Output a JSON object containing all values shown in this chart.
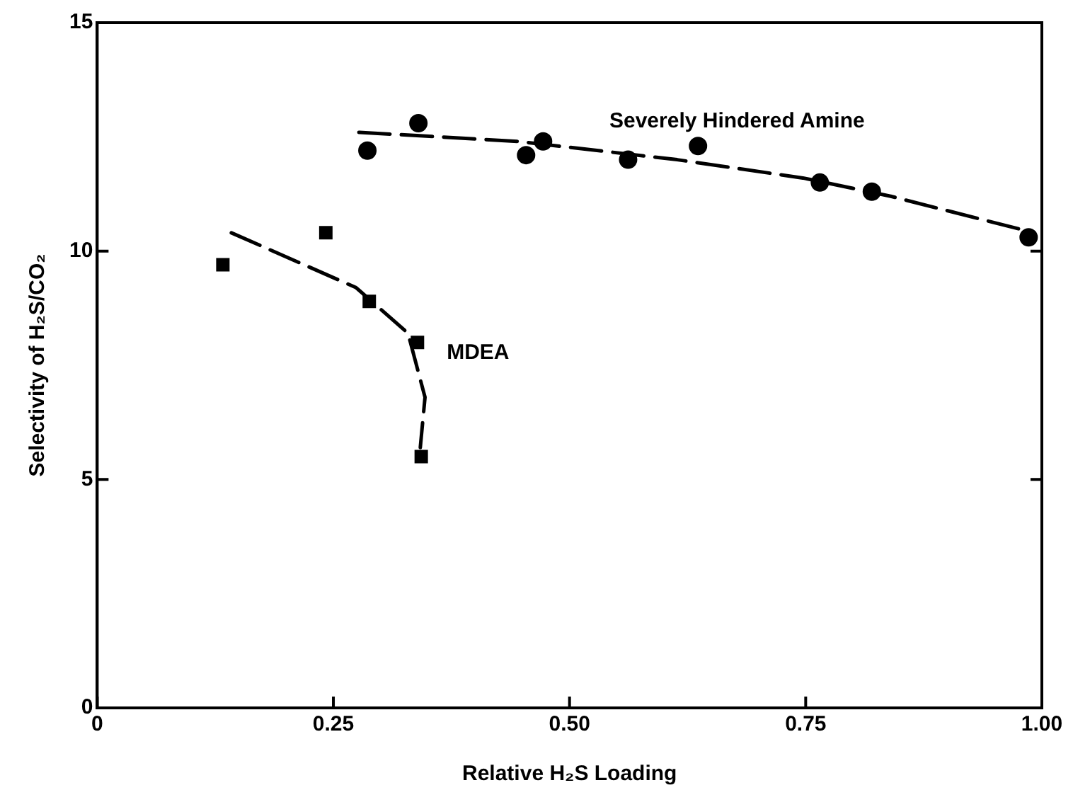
{
  "chart_data": {
    "type": "scatter",
    "xlabel": "Relative H₂S Loading",
    "ylabel": "Selectivity of H₂S/CO₂",
    "xlim": [
      0,
      1
    ],
    "ylim": [
      0,
      15
    ],
    "xticks": [
      0,
      {
        "value": 0.25,
        "label": "0.25"
      },
      {
        "value": 0.5,
        "label": "0.50"
      },
      {
        "value": 0.75,
        "label": "0.75"
      },
      {
        "value": 1,
        "label": "1.00"
      }
    ],
    "yticks": [
      0,
      5,
      10,
      15
    ],
    "grid": false,
    "legend": false,
    "series": [
      {
        "name": "Severely Hindered Amine",
        "type": "scatter",
        "marker": "circle",
        "color": "#000000",
        "x": [
          0.286,
          0.34,
          0.454,
          0.472,
          0.562,
          0.636,
          0.765,
          0.82,
          0.986
        ],
        "values": [
          12.2,
          12.8,
          12.1,
          12.4,
          12.0,
          12.3,
          11.5,
          11.3,
          10.3
        ]
      },
      {
        "name": "MDEA",
        "type": "scatter",
        "marker": "square",
        "color": "#000000",
        "x": [
          0.133,
          0.242,
          0.288,
          0.339,
          0.343
        ],
        "values": [
          9.7,
          10.4,
          8.9,
          8.0,
          5.5
        ]
      },
      {
        "type": "line",
        "marker": "none",
        "line_style": "dashed",
        "color": "#000000",
        "x": [
          0.277,
          0.446,
          0.614,
          0.747,
          0.84,
          0.992
        ],
        "values": [
          12.6,
          12.4,
          12.0,
          11.6,
          11.2,
          10.4
        ]
      },
      {
        "type": "line",
        "marker": "none",
        "line_style": "dashed",
        "color": "#000000",
        "x": [
          0.142,
          0.274,
          0.329,
          0.347,
          0.342
        ],
        "values": [
          10.4,
          9.2,
          8.2,
          6.8,
          5.7
        ]
      }
    ]
  }
}
